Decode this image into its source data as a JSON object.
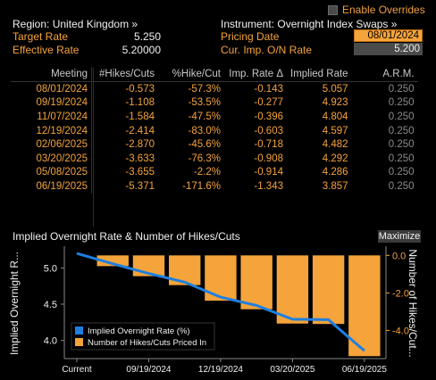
{
  "header": {
    "enable_overrides_label": "Enable Overrides",
    "region_label": "Region: United Kingdom »",
    "instrument_label": "Instrument: Overnight Index Swaps »",
    "target_rate_label": "Target Rate",
    "target_rate_value": "5.250",
    "effective_rate_label": "Effective Rate",
    "effective_rate_value": "5.20000",
    "pricing_date_label": "Pricing Date",
    "pricing_date_value": "08/01/2024",
    "cur_imp_label": "Cur. Imp. O/N Rate",
    "cur_imp_value": "5.200"
  },
  "table": {
    "columns": [
      "Meeting",
      "#Hikes/Cuts",
      "%Hike/Cut",
      "Imp. Rate Δ",
      "Implied Rate",
      "A.R.M."
    ],
    "rows": [
      [
        "08/01/2024",
        "-0.573",
        "-57.3%",
        "-0.143",
        "5.057",
        "0.250"
      ],
      [
        "09/19/2024",
        "-1.108",
        "-53.5%",
        "-0.277",
        "4.923",
        "0.250"
      ],
      [
        "11/07/2024",
        "-1.584",
        "-47.5%",
        "-0.396",
        "4.804",
        "0.250"
      ],
      [
        "12/19/2024",
        "-2.414",
        "-83.0%",
        "-0.603",
        "4.597",
        "0.250"
      ],
      [
        "02/06/2025",
        "-2.870",
        "-45.6%",
        "-0.718",
        "4.482",
        "0.250"
      ],
      [
        "03/20/2025",
        "-3.633",
        "-76.3%",
        "-0.908",
        "4.292",
        "0.250"
      ],
      [
        "05/08/2025",
        "-3.655",
        "-2.2%",
        "-0.914",
        "4.286",
        "0.250"
      ],
      [
        "06/19/2025",
        "-5.371",
        "-171.6%",
        "-1.343",
        "3.857",
        "0.250"
      ]
    ]
  },
  "chart": {
    "title": "Implied Overnight Rate & Number of Hikes/Cuts",
    "maximize_label": "Maximize",
    "left_axis_label": "Implied Overnight R...",
    "right_axis_label": "Number of Hikes/Cut...",
    "legend_rate": "Implied Overnight Rate (%)",
    "legend_hikes": "Number of Hikes/Cuts Priced In"
  },
  "chart_data": {
    "type": "bar",
    "categories": [
      "Current",
      "08/01/2024",
      "09/19/2024",
      "11/07/2024",
      "12/19/2024",
      "02/06/2025",
      "03/20/2025",
      "05/08/2025",
      "06/19/2025"
    ],
    "x_tick_labels": [
      "Current",
      "09/19/2024",
      "12/19/2024",
      "03/20/2025",
      "06/19/2025"
    ],
    "series": [
      {
        "name": "Implied Overnight Rate (%)",
        "type": "line",
        "axis": "left",
        "color": "#1e7fe0",
        "values": [
          5.2,
          5.057,
          4.923,
          4.804,
          4.597,
          4.482,
          4.292,
          4.286,
          3.857
        ]
      },
      {
        "name": "Number of Hikes/Cuts Priced In",
        "type": "bar",
        "axis": "right",
        "color": "#f5a33b",
        "values": [
          0,
          -0.573,
          -1.108,
          -1.584,
          -2.414,
          -2.87,
          -3.633,
          -3.655,
          -5.371
        ]
      }
    ],
    "left_ticks": [
      "5.0",
      "4.5",
      "4.0"
    ],
    "left_tick_values": [
      5.0,
      4.5,
      4.0
    ],
    "ylim_left": [
      3.75,
      5.25
    ],
    "right_ticks": [
      "0.0",
      "-2.0",
      "-4.0"
    ],
    "right_tick_values": [
      0,
      -2,
      -4
    ],
    "ylim_right": [
      -5.5,
      0.3
    ],
    "grid": false,
    "legend": "bottom-left"
  }
}
